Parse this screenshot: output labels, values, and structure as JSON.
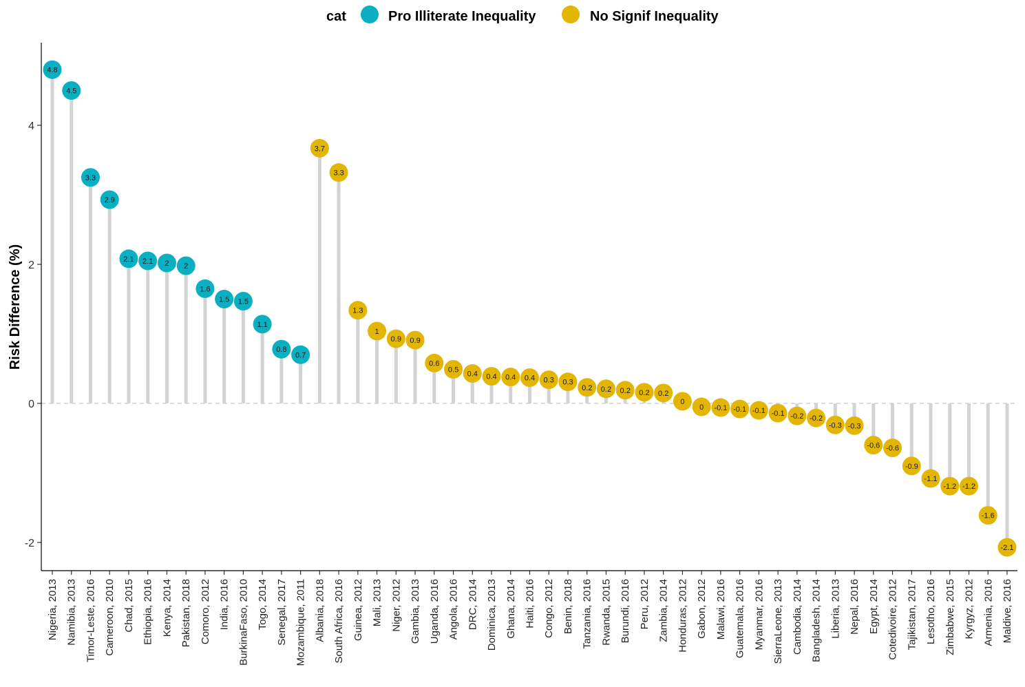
{
  "chart_data": {
    "type": "lollipop",
    "ylabel": "Risk Difference (%)",
    "xlabel": "",
    "ylim": [
      -2.4,
      5.2
    ],
    "yticks": [
      -2,
      0,
      2,
      4
    ],
    "reference_line": 0,
    "legend": {
      "title": "cat",
      "position": "top",
      "items": [
        {
          "label": "Pro Illiterate Inequality",
          "color": "#0AB0C2"
        },
        {
          "label": "No Signif Inequality",
          "color": "#E3B505"
        }
      ]
    },
    "stem_color": "#D3D3D3",
    "points": [
      {
        "x": "Nigeria, 2013",
        "y": 4.8,
        "label": "4.8",
        "cat": 0
      },
      {
        "x": "Namibia, 2013",
        "y": 4.5,
        "label": "4.5",
        "cat": 0
      },
      {
        "x": "Timor-Leste, 2016",
        "y": 3.25,
        "label": "3.3",
        "cat": 0
      },
      {
        "x": "Cameroon, 2010",
        "y": 2.93,
        "label": "2.9",
        "cat": 0
      },
      {
        "x": "Chad, 2015",
        "y": 2.08,
        "label": "2.1",
        "cat": 0
      },
      {
        "x": "Ethiopia, 2016",
        "y": 2.05,
        "label": "2.1",
        "cat": 0
      },
      {
        "x": "Kenya, 2014",
        "y": 2.02,
        "label": "2",
        "cat": 0
      },
      {
        "x": "Pakistan, 2018",
        "y": 1.98,
        "label": "2",
        "cat": 0
      },
      {
        "x": "Comoro, 2012",
        "y": 1.65,
        "label": "1.6",
        "cat": 0
      },
      {
        "x": "India, 2016",
        "y": 1.5,
        "label": "1.5",
        "cat": 0
      },
      {
        "x": "BurkinaFaso, 2010",
        "y": 1.47,
        "label": "1.5",
        "cat": 0
      },
      {
        "x": "Togo, 2014",
        "y": 1.14,
        "label": "1.1",
        "cat": 0
      },
      {
        "x": "Senegal, 2017",
        "y": 0.78,
        "label": "0.8",
        "cat": 0
      },
      {
        "x": "Mozambique, 2011",
        "y": 0.7,
        "label": "0.7",
        "cat": 0
      },
      {
        "x": "Albania, 2018",
        "y": 3.67,
        "label": "3.7",
        "cat": 1
      },
      {
        "x": "South Africa, 2016",
        "y": 3.32,
        "label": "3.3",
        "cat": 1
      },
      {
        "x": "Guinea, 2012",
        "y": 1.34,
        "label": "1.3",
        "cat": 1
      },
      {
        "x": "Mali, 2013",
        "y": 1.04,
        "label": "1",
        "cat": 1
      },
      {
        "x": "Niger, 2012",
        "y": 0.93,
        "label": "0.9",
        "cat": 1
      },
      {
        "x": "Gambia, 2013",
        "y": 0.91,
        "label": "0.9",
        "cat": 1
      },
      {
        "x": "Uganda, 2016",
        "y": 0.58,
        "label": "0.6",
        "cat": 1
      },
      {
        "x": "Angola, 2016",
        "y": 0.49,
        "label": "0.5",
        "cat": 1
      },
      {
        "x": "DRC, 2014",
        "y": 0.43,
        "label": "0.4",
        "cat": 1
      },
      {
        "x": "Dominica, 2013",
        "y": 0.39,
        "label": "0.4",
        "cat": 1
      },
      {
        "x": "Ghana, 2014",
        "y": 0.38,
        "label": "0.4",
        "cat": 1
      },
      {
        "x": "Haiti, 2016",
        "y": 0.37,
        "label": "0.4",
        "cat": 1
      },
      {
        "x": "Congo, 2012",
        "y": 0.34,
        "label": "0.3",
        "cat": 1
      },
      {
        "x": "Benin, 2018",
        "y": 0.31,
        "label": "0.3",
        "cat": 1
      },
      {
        "x": "Tanzania, 2016",
        "y": 0.23,
        "label": "0.2",
        "cat": 1
      },
      {
        "x": "Rwanda, 2015",
        "y": 0.21,
        "label": "0.2",
        "cat": 1
      },
      {
        "x": "Burundi, 2016",
        "y": 0.19,
        "label": "0.2",
        "cat": 1
      },
      {
        "x": "Peru, 2012",
        "y": 0.16,
        "label": "0.2",
        "cat": 1
      },
      {
        "x": "Zambia, 2014",
        "y": 0.15,
        "label": "0.2",
        "cat": 1
      },
      {
        "x": "Honduras, 2012",
        "y": 0.03,
        "label": "0",
        "cat": 1
      },
      {
        "x": "Gabon, 2012",
        "y": -0.05,
        "label": "0",
        "cat": 1
      },
      {
        "x": "Malawi, 2016",
        "y": -0.06,
        "label": "-0.1",
        "cat": 1
      },
      {
        "x": "Guatemala, 2016",
        "y": -0.08,
        "label": "-0.1",
        "cat": 1
      },
      {
        "x": "Myanmar, 2016",
        "y": -0.1,
        "label": "-0.1",
        "cat": 1
      },
      {
        "x": "SierraLeone, 2013",
        "y": -0.14,
        "label": "-0.1",
        "cat": 1
      },
      {
        "x": "Cambodia, 2014",
        "y": -0.18,
        "label": "-0.2",
        "cat": 1
      },
      {
        "x": "Bangladesh, 2014",
        "y": -0.21,
        "label": "-0.2",
        "cat": 1
      },
      {
        "x": "Liberia, 2013",
        "y": -0.31,
        "label": "-0.3",
        "cat": 1
      },
      {
        "x": "Nepal, 2016",
        "y": -0.32,
        "label": "-0.3",
        "cat": 1
      },
      {
        "x": "Egypt, 2014",
        "y": -0.6,
        "label": "-0.6",
        "cat": 1
      },
      {
        "x": "Cotedivoire, 2012",
        "y": -0.64,
        "label": "-0.6",
        "cat": 1
      },
      {
        "x": "Tajikistan, 2017",
        "y": -0.9,
        "label": "-0.9",
        "cat": 1
      },
      {
        "x": "Lesotho, 2016",
        "y": -1.08,
        "label": "-1.1",
        "cat": 1
      },
      {
        "x": "Zimbabwe, 2015",
        "y": -1.19,
        "label": "-1.2",
        "cat": 1
      },
      {
        "x": "Kyrgyz, 2012",
        "y": -1.19,
        "label": "-1.2",
        "cat": 1
      },
      {
        "x": "Armenia, 2016",
        "y": -1.61,
        "label": "-1.6",
        "cat": 1
      },
      {
        "x": "Maldive, 2016",
        "y": -2.07,
        "label": "-2.1",
        "cat": 1
      }
    ]
  }
}
